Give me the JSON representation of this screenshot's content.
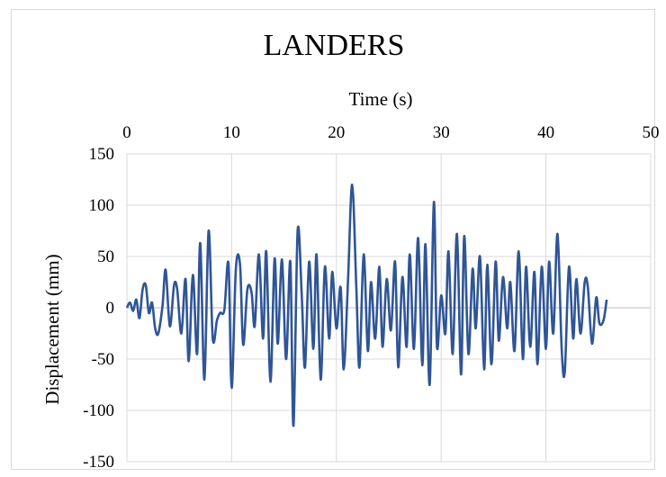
{
  "chart_data": {
    "type": "line",
    "title": "LANDERS",
    "xlabel": "Time (s)",
    "ylabel": "Displacement (mm)",
    "xlim": [
      0,
      50
    ],
    "ylim": [
      -150,
      150
    ],
    "x_axis_position": "top",
    "x_ticks": [
      0,
      10,
      20,
      30,
      40,
      50
    ],
    "y_ticks": [
      150,
      100,
      50,
      0,
      -50,
      -100,
      -150
    ],
    "grid": true,
    "legend": "none",
    "series": [
      {
        "color": "#2f5597",
        "points": [
          [
            0.0,
            0
          ],
          [
            0.3,
            5
          ],
          [
            0.6,
            -3
          ],
          [
            0.9,
            8
          ],
          [
            1.2,
            -10
          ],
          [
            1.5,
            18
          ],
          [
            1.8,
            22
          ],
          [
            2.1,
            -5
          ],
          [
            2.4,
            5
          ],
          [
            2.7,
            -20
          ],
          [
            3.0,
            -25
          ],
          [
            3.4,
            2
          ],
          [
            3.7,
            37
          ],
          [
            4.1,
            -18
          ],
          [
            4.5,
            22
          ],
          [
            4.8,
            18
          ],
          [
            5.2,
            -25
          ],
          [
            5.6,
            28
          ],
          [
            5.9,
            -52
          ],
          [
            6.3,
            32
          ],
          [
            6.7,
            -45
          ],
          [
            7.0,
            63
          ],
          [
            7.4,
            -70
          ],
          [
            7.8,
            75
          ],
          [
            8.2,
            -30
          ],
          [
            8.6,
            -12
          ],
          [
            8.9,
            -5
          ],
          [
            9.3,
            -2
          ],
          [
            9.7,
            43
          ],
          [
            10.0,
            -78
          ],
          [
            10.4,
            38
          ],
          [
            10.8,
            42
          ],
          [
            11.1,
            -36
          ],
          [
            11.5,
            18
          ],
          [
            11.9,
            15
          ],
          [
            12.2,
            -18
          ],
          [
            12.6,
            52
          ],
          [
            13.0,
            -30
          ],
          [
            13.3,
            55
          ],
          [
            13.7,
            -72
          ],
          [
            14.1,
            48
          ],
          [
            14.4,
            -35
          ],
          [
            14.8,
            47
          ],
          [
            15.2,
            -50
          ],
          [
            15.6,
            45
          ],
          [
            15.9,
            -115
          ],
          [
            16.3,
            75
          ],
          [
            16.7,
            10
          ],
          [
            17.0,
            -58
          ],
          [
            17.4,
            45
          ],
          [
            17.8,
            -40
          ],
          [
            18.1,
            52
          ],
          [
            18.5,
            -70
          ],
          [
            18.9,
            40
          ],
          [
            19.3,
            -30
          ],
          [
            19.6,
            35
          ],
          [
            20.0,
            -20
          ],
          [
            20.4,
            20
          ],
          [
            20.7,
            -60
          ],
          [
            21.1,
            25
          ],
          [
            21.5,
            120
          ],
          [
            21.9,
            20
          ],
          [
            22.2,
            -58
          ],
          [
            22.6,
            52
          ],
          [
            23.0,
            -42
          ],
          [
            23.3,
            25
          ],
          [
            23.7,
            -30
          ],
          [
            24.1,
            40
          ],
          [
            24.4,
            -38
          ],
          [
            24.8,
            28
          ],
          [
            25.2,
            -22
          ],
          [
            25.6,
            45
          ],
          [
            25.9,
            -58
          ],
          [
            26.3,
            30
          ],
          [
            26.7,
            -38
          ],
          [
            27.0,
            52
          ],
          [
            27.4,
            -40
          ],
          [
            27.8,
            68
          ],
          [
            28.2,
            -56
          ],
          [
            28.5,
            62
          ],
          [
            28.9,
            -75
          ],
          [
            29.3,
            103
          ],
          [
            29.6,
            -38
          ],
          [
            30.0,
            12
          ],
          [
            30.4,
            -25
          ],
          [
            30.7,
            55
          ],
          [
            31.1,
            -45
          ],
          [
            31.5,
            72
          ],
          [
            31.9,
            -65
          ],
          [
            32.2,
            70
          ],
          [
            32.6,
            -45
          ],
          [
            33.0,
            38
          ],
          [
            33.3,
            -20
          ],
          [
            33.7,
            50
          ],
          [
            34.1,
            -60
          ],
          [
            34.4,
            42
          ],
          [
            34.8,
            -55
          ],
          [
            35.2,
            45
          ],
          [
            35.5,
            -32
          ],
          [
            35.9,
            30
          ],
          [
            36.3,
            -20
          ],
          [
            36.6,
            25
          ],
          [
            37.0,
            -42
          ],
          [
            37.4,
            55
          ],
          [
            37.8,
            -50
          ],
          [
            38.1,
            40
          ],
          [
            38.5,
            -38
          ],
          [
            38.9,
            35
          ],
          [
            39.2,
            -55
          ],
          [
            39.6,
            40
          ],
          [
            40.0,
            -40
          ],
          [
            40.3,
            45
          ],
          [
            40.7,
            -25
          ],
          [
            41.1,
            72
          ],
          [
            41.5,
            -40
          ],
          [
            41.8,
            -62
          ],
          [
            42.2,
            40
          ],
          [
            42.6,
            -30
          ],
          [
            42.9,
            28
          ],
          [
            43.3,
            -25
          ],
          [
            43.7,
            25
          ],
          [
            44.0,
            20
          ],
          [
            44.4,
            -35
          ],
          [
            44.8,
            10
          ],
          [
            45.1,
            -15
          ],
          [
            45.5,
            -12
          ],
          [
            45.8,
            8
          ]
        ]
      }
    ]
  }
}
